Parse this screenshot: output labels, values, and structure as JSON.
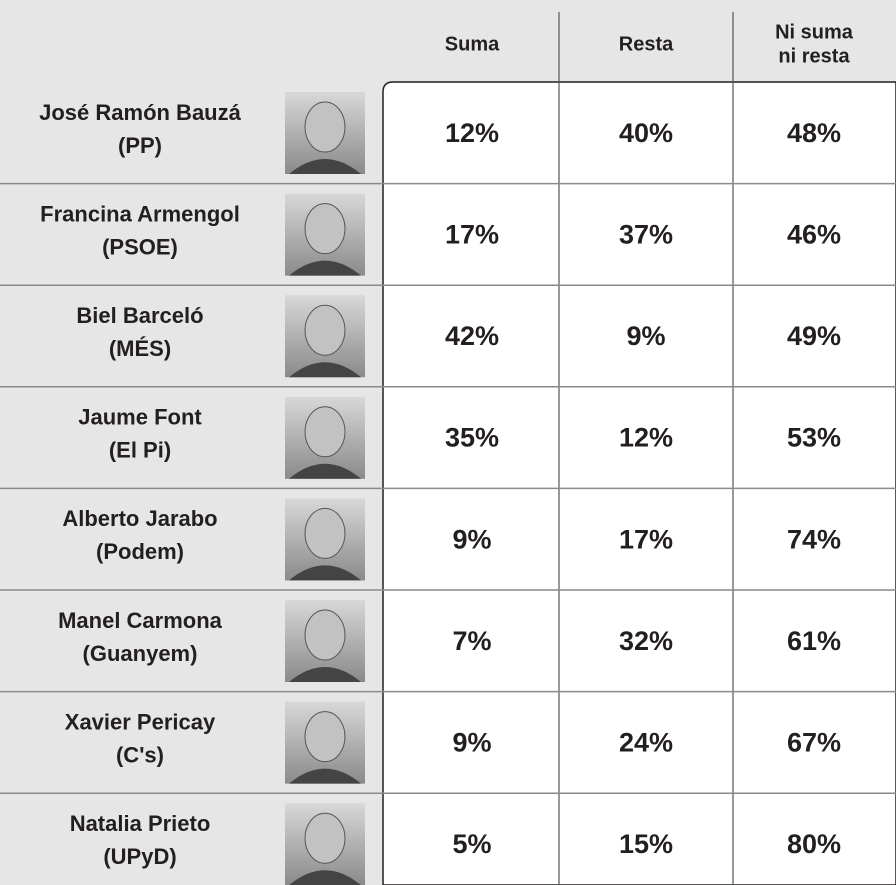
{
  "table": {
    "columns": [
      [
        "Suma"
      ],
      [
        "Resta"
      ],
      [
        "Ni suma",
        "ni resta"
      ]
    ],
    "rows": [
      {
        "name": "José Ramón Bauzá",
        "party": "(PP)",
        "values": [
          "12%",
          "40%",
          "48%"
        ]
      },
      {
        "name": "Francina Armengol",
        "party": "(PSOE)",
        "values": [
          "17%",
          "37%",
          "46%"
        ]
      },
      {
        "name": "Biel Barceló",
        "party": "(MÉS)",
        "values": [
          "42%",
          "9%",
          "49%"
        ]
      },
      {
        "name": "Jaume Font",
        "party": "(El Pi)",
        "values": [
          "35%",
          "12%",
          "53%"
        ]
      },
      {
        "name": "Alberto Jarabo",
        "party": "(Podem)",
        "values": [
          "9%",
          "17%",
          "74%"
        ]
      },
      {
        "name": "Manel Carmona",
        "party": "(Guanyem)",
        "values": [
          "7%",
          "32%",
          "61%"
        ]
      },
      {
        "name": "Xavier Pericay",
        "party": "(C's)",
        "values": [
          "9%",
          "24%",
          "67%"
        ]
      },
      {
        "name": "Natalia Prieto",
        "party": "(UPyD)",
        "values": [
          "5%",
          "15%",
          "80%"
        ]
      }
    ]
  }
}
